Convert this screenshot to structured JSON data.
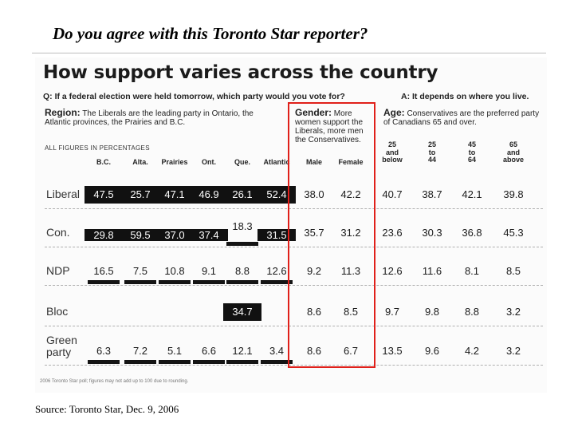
{
  "slide_title": "Do you agree with this Toronto Star reporter?",
  "source": "Source: Toronto Star, Dec. 9, 2006",
  "clipping": {
    "headline": "How support varies across the country",
    "question_q": "Q: If a federal election were held tomorrow, which party would you vote for?",
    "question_a": "A: It depends on where you live.",
    "region_title": "Region:",
    "region_text": "The Liberals are the leading party in Ontario, the Atlantic provinces, the Prairies and B.C.",
    "gender_title": "Gender:",
    "gender_text": "More women support the Liberals, more men the Conservatives.",
    "age_title": "Age:",
    "age_text": "Conservatives are the preferred party of Canadians 65 and over.",
    "figures_label": "ALL FIGURES IN PERCENTAGES",
    "footnote": "2006 Toronto Star poll; figures may not add up to 100 due to rounding.",
    "region_columns": [
      "B.C.",
      "Alta.",
      "Prairies",
      "Ont.",
      "Que.",
      "Atlantic"
    ],
    "gender_columns": [
      "Male",
      "Female"
    ],
    "age_columns": [
      {
        "top": "25",
        "mid": "and",
        "bot": "below"
      },
      {
        "top": "25",
        "mid": "to",
        "bot": "44"
      },
      {
        "top": "45",
        "mid": "to",
        "bot": "64"
      },
      {
        "top": "65",
        "mid": "and",
        "bot": "above"
      }
    ],
    "rows": [
      {
        "party": "Liberal",
        "region": [
          "47.5",
          "25.7",
          "47.1",
          "46.9",
          "26.1",
          "52.4"
        ],
        "gender": [
          "38.0",
          "42.2"
        ],
        "age": [
          "40.7",
          "38.7",
          "42.1",
          "39.8"
        ]
      },
      {
        "party": "Con.",
        "region": [
          "29.8",
          "59.5",
          "37.0",
          "37.4",
          "18.3",
          "31.5"
        ],
        "gender": [
          "35.7",
          "31.2"
        ],
        "age": [
          "23.6",
          "30.3",
          "36.8",
          "45.3"
        ]
      },
      {
        "party": "NDP",
        "region": [
          "16.5",
          "7.5",
          "10.8",
          "9.1",
          "8.8",
          "12.6"
        ],
        "gender": [
          "9.2",
          "11.3"
        ],
        "age": [
          "12.6",
          "11.6",
          "8.1",
          "8.5"
        ]
      },
      {
        "party": "Bloc",
        "region": [
          "",
          "",
          "",
          "",
          "34.7",
          ""
        ],
        "gender": [
          "8.6",
          "8.5"
        ],
        "age": [
          "9.7",
          "9.8",
          "8.8",
          "3.2"
        ]
      },
      {
        "party": "Green party",
        "region": [
          "6.3",
          "7.2",
          "5.1",
          "6.6",
          "12.1",
          "3.4"
        ],
        "gender": [
          "8.6",
          "6.7"
        ],
        "age": [
          "13.5",
          "9.6",
          "4.2",
          "3.2"
        ]
      }
    ]
  },
  "highlight_color": "#e0201a"
}
